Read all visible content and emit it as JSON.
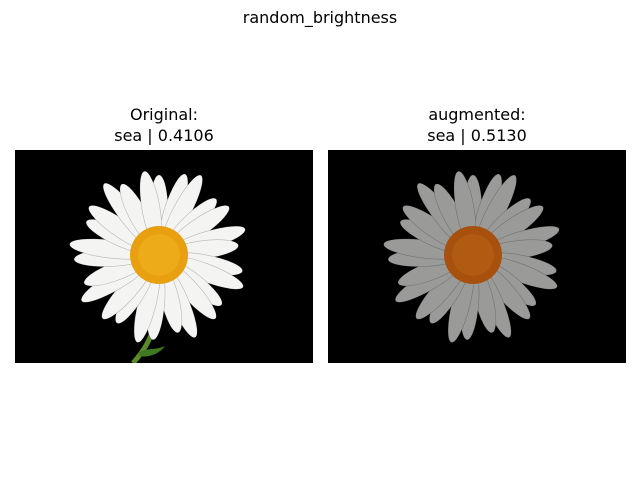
{
  "figure": {
    "title": "random_brightness"
  },
  "panels": {
    "original": {
      "title_line1": "Original:",
      "title_line2": "sea | 0.4106"
    },
    "augmented": {
      "title_line1": "augmented:",
      "title_line2": "sea | 0.5130"
    }
  },
  "colors": {
    "background": "#000000",
    "petal_original": "#f4f4f2",
    "petal_augmented": "#9a9a98",
    "center_original": "#e8a010",
    "center_augmented": "#a8500e",
    "stem": "#5a8a2a"
  }
}
